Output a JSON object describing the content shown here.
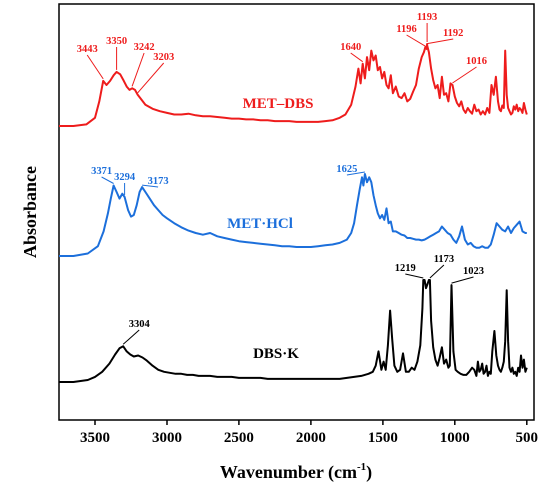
{
  "chart_data": {
    "type": "line",
    "xlabel": "Wavenumber (cm",
    "xlabel_sup": "-1",
    "xlabel_close": ")",
    "ylabel": "Absorbance",
    "xlim": [
      3750,
      450
    ],
    "x_reversed": true,
    "xticks": [
      3500,
      3000,
      2500,
      2000,
      1500,
      1000,
      500
    ],
    "xtick_labels": [
      "3500",
      "3000",
      "2500",
      "2000",
      "1500",
      "1000",
      "500"
    ],
    "grid": false,
    "legend": "none",
    "series": [
      {
        "name": "MET–DBS",
        "color": "#ee1c1c",
        "x": [
          3750,
          3650,
          3560,
          3500,
          3470,
          3443,
          3420,
          3395,
          3370,
          3350,
          3325,
          3300,
          3280,
          3260,
          3242,
          3222,
          3203,
          3150,
          3100,
          3050,
          3000,
          2950,
          2900,
          2850,
          2800,
          2750,
          2700,
          2650,
          2600,
          2550,
          2500,
          2450,
          2400,
          2350,
          2300,
          2250,
          2200,
          2150,
          2100,
          2050,
          2000,
          1950,
          1900,
          1850,
          1800,
          1760,
          1720,
          1690,
          1670,
          1655,
          1640,
          1625,
          1610,
          1595,
          1580,
          1565,
          1550,
          1535,
          1520,
          1505,
          1490,
          1475,
          1460,
          1445,
          1430,
          1410,
          1390,
          1370,
          1350,
          1330,
          1310,
          1290,
          1270,
          1250,
          1230,
          1215,
          1205,
          1196,
          1193,
          1192,
          1180,
          1165,
          1150,
          1135,
          1120,
          1105,
          1090,
          1075,
          1060,
          1045,
          1030,
          1016,
          1000,
          985,
          970,
          955,
          940,
          925,
          910,
          895,
          880,
          865,
          850,
          835,
          820,
          805,
          790,
          775,
          760,
          745,
          730,
          715,
          700,
          690,
          680,
          670,
          660,
          650,
          640,
          630,
          620,
          610,
          600,
          590,
          580,
          570,
          560,
          550,
          540,
          530,
          520,
          510,
          500
        ],
        "y": [
          0.0,
          0.0,
          0.02,
          0.1,
          0.3,
          0.55,
          0.5,
          0.55,
          0.62,
          0.66,
          0.63,
          0.55,
          0.48,
          0.44,
          0.46,
          0.44,
          0.38,
          0.26,
          0.21,
          0.18,
          0.16,
          0.14,
          0.14,
          0.15,
          0.13,
          0.12,
          0.12,
          0.11,
          0.1,
          0.09,
          0.09,
          0.08,
          0.08,
          0.07,
          0.07,
          0.06,
          0.06,
          0.06,
          0.05,
          0.05,
          0.05,
          0.05,
          0.06,
          0.07,
          0.1,
          0.14,
          0.26,
          0.48,
          0.7,
          0.52,
          0.76,
          0.58,
          0.84,
          0.68,
          0.92,
          0.8,
          0.86,
          0.68,
          0.72,
          0.58,
          0.66,
          0.5,
          0.46,
          0.62,
          0.4,
          0.48,
          0.36,
          0.34,
          0.4,
          0.3,
          0.33,
          0.42,
          0.5,
          0.7,
          0.84,
          0.9,
          0.96,
          0.94,
          1.0,
          0.98,
          0.9,
          0.7,
          0.56,
          0.46,
          0.5,
          0.34,
          0.6,
          0.38,
          0.4,
          0.3,
          0.52,
          0.5,
          0.36,
          0.28,
          0.24,
          0.3,
          0.2,
          0.16,
          0.22,
          0.18,
          0.15,
          0.26,
          0.18,
          0.2,
          0.14,
          0.18,
          0.14,
          0.22,
          0.16,
          0.5,
          0.38,
          0.6,
          0.3,
          0.2,
          0.18,
          0.25,
          0.22,
          0.92,
          0.38,
          0.22,
          0.18,
          0.14,
          0.16,
          0.24,
          0.2,
          0.26,
          0.18,
          0.22,
          0.2,
          0.16,
          0.28,
          0.2,
          0.14
        ]
      },
      {
        "name": "MET·HCl",
        "color": "#1c6fdb",
        "x": [
          3750,
          3650,
          3550,
          3480,
          3440,
          3410,
          3390,
          3371,
          3350,
          3330,
          3310,
          3294,
          3270,
          3250,
          3230,
          3210,
          3190,
          3173,
          3150,
          3120,
          3090,
          3060,
          3030,
          3000,
          2950,
          2900,
          2850,
          2800,
          2750,
          2700,
          2650,
          2600,
          2550,
          2500,
          2450,
          2400,
          2350,
          2300,
          2250,
          2200,
          2150,
          2100,
          2050,
          2000,
          1950,
          1900,
          1850,
          1800,
          1750,
          1720,
          1700,
          1680,
          1660,
          1645,
          1635,
          1625,
          1610,
          1595,
          1580,
          1565,
          1550,
          1535,
          1520,
          1505,
          1490,
          1475,
          1460,
          1445,
          1430,
          1410,
          1390,
          1370,
          1350,
          1330,
          1310,
          1290,
          1270,
          1250,
          1230,
          1210,
          1190,
          1170,
          1150,
          1130,
          1110,
          1090,
          1070,
          1050,
          1030,
          1010,
          990,
          970,
          950,
          930,
          910,
          890,
          870,
          850,
          830,
          810,
          790,
          770,
          750,
          730,
          710,
          690,
          670,
          650,
          630,
          610,
          590,
          570,
          550,
          530,
          510,
          500
        ],
        "y": [
          0.0,
          0.0,
          0.03,
          0.12,
          0.3,
          0.52,
          0.7,
          0.86,
          0.78,
          0.7,
          0.76,
          0.72,
          0.56,
          0.48,
          0.5,
          0.62,
          0.78,
          0.84,
          0.78,
          0.7,
          0.62,
          0.56,
          0.5,
          0.46,
          0.4,
          0.35,
          0.31,
          0.28,
          0.26,
          0.28,
          0.24,
          0.22,
          0.2,
          0.18,
          0.17,
          0.16,
          0.15,
          0.14,
          0.13,
          0.12,
          0.12,
          0.11,
          0.11,
          0.11,
          0.12,
          0.13,
          0.14,
          0.16,
          0.2,
          0.28,
          0.4,
          0.62,
          0.82,
          0.96,
          0.86,
          1.0,
          0.9,
          0.96,
          0.9,
          0.74,
          0.62,
          0.52,
          0.46,
          0.5,
          0.44,
          0.58,
          0.4,
          0.42,
          0.3,
          0.3,
          0.28,
          0.26,
          0.25,
          0.22,
          0.22,
          0.21,
          0.2,
          0.2,
          0.19,
          0.2,
          0.22,
          0.24,
          0.26,
          0.28,
          0.3,
          0.36,
          0.32,
          0.28,
          0.26,
          0.2,
          0.16,
          0.24,
          0.36,
          0.2,
          0.14,
          0.16,
          0.12,
          0.1,
          0.1,
          0.12,
          0.1,
          0.1,
          0.14,
          0.26,
          0.4,
          0.36,
          0.32,
          0.3,
          0.36,
          0.28,
          0.34,
          0.38,
          0.42,
          0.3,
          0.28,
          0.28
        ]
      },
      {
        "name": "DBS·K",
        "color": "#000000",
        "x": [
          3750,
          3650,
          3550,
          3500,
          3450,
          3400,
          3360,
          3330,
          3304,
          3280,
          3255,
          3230,
          3200,
          3170,
          3140,
          3100,
          3060,
          3020,
          2980,
          2940,
          2900,
          2860,
          2820,
          2780,
          2740,
          2700,
          2650,
          2600,
          2550,
          2500,
          2450,
          2400,
          2350,
          2300,
          2250,
          2200,
          2150,
          2100,
          2050,
          2000,
          1950,
          1900,
          1850,
          1800,
          1750,
          1700,
          1650,
          1600,
          1570,
          1550,
          1530,
          1510,
          1495,
          1480,
          1465,
          1450,
          1435,
          1420,
          1400,
          1380,
          1360,
          1340,
          1320,
          1300,
          1280,
          1260,
          1240,
          1225,
          1219,
          1210,
          1200,
          1190,
          1180,
          1173,
          1165,
          1150,
          1135,
          1120,
          1105,
          1090,
          1075,
          1060,
          1045,
          1035,
          1023,
          1010,
          995,
          980,
          960,
          940,
          920,
          900,
          880,
          865,
          850,
          840,
          830,
          820,
          810,
          800,
          790,
          780,
          770,
          760,
          750,
          740,
          725,
          712,
          700,
          690,
          680,
          670,
          660,
          650,
          640,
          630,
          620,
          610,
          600,
          590,
          580,
          570,
          560,
          550,
          540,
          530,
          520,
          510,
          500
        ],
        "y": [
          0.0,
          0.0,
          0.02,
          0.05,
          0.1,
          0.18,
          0.27,
          0.33,
          0.35,
          0.3,
          0.27,
          0.25,
          0.26,
          0.24,
          0.21,
          0.16,
          0.12,
          0.1,
          0.09,
          0.08,
          0.08,
          0.07,
          0.07,
          0.06,
          0.06,
          0.06,
          0.05,
          0.05,
          0.05,
          0.04,
          0.04,
          0.04,
          0.04,
          0.03,
          0.03,
          0.03,
          0.03,
          0.03,
          0.03,
          0.03,
          0.03,
          0.03,
          0.03,
          0.03,
          0.04,
          0.05,
          0.06,
          0.08,
          0.1,
          0.16,
          0.3,
          0.12,
          0.2,
          0.12,
          0.36,
          0.7,
          0.42,
          0.16,
          0.1,
          0.12,
          0.28,
          0.1,
          0.1,
          0.14,
          0.12,
          0.2,
          0.36,
          0.72,
          1.0,
          1.0,
          0.92,
          0.96,
          1.0,
          1.0,
          0.6,
          0.34,
          0.22,
          0.16,
          0.24,
          0.34,
          0.18,
          0.22,
          0.14,
          0.16,
          0.95,
          0.3,
          0.12,
          0.1,
          0.08,
          0.07,
          0.07,
          0.1,
          0.14,
          0.12,
          0.06,
          0.2,
          0.1,
          0.12,
          0.18,
          0.08,
          0.1,
          0.16,
          0.06,
          0.1,
          0.08,
          0.3,
          0.5,
          0.26,
          0.16,
          0.12,
          0.1,
          0.14,
          0.2,
          0.4,
          0.9,
          0.4,
          0.14,
          0.1,
          0.14,
          0.08,
          0.1,
          0.06,
          0.14,
          0.1,
          0.26,
          0.14,
          0.22,
          0.1,
          0.14
        ]
      }
    ],
    "series_labels": [
      "MET–DBS",
      "MET·HCl",
      "DBS·K"
    ],
    "annotations": [
      {
        "series": 0,
        "text": "3443",
        "x": 3443
      },
      {
        "series": 0,
        "text": "3350",
        "x": 3350
      },
      {
        "series": 0,
        "text": "3242",
        "x": 3242
      },
      {
        "series": 0,
        "text": "3203",
        "x": 3203
      },
      {
        "series": 0,
        "text": "1640",
        "x": 1640
      },
      {
        "series": 0,
        "text": "1196",
        "x": 1196
      },
      {
        "series": 0,
        "text": "1193",
        "x": 1193
      },
      {
        "series": 0,
        "text": "1192",
        "x": 1192
      },
      {
        "series": 0,
        "text": "1016",
        "x": 1016
      },
      {
        "series": 1,
        "text": "3371",
        "x": 3371
      },
      {
        "series": 1,
        "text": "3294",
        "x": 3294
      },
      {
        "series": 1,
        "text": "3173",
        "x": 3173
      },
      {
        "series": 1,
        "text": "1625",
        "x": 1625
      },
      {
        "series": 2,
        "text": "3304",
        "x": 3304
      },
      {
        "series": 2,
        "text": "1219",
        "x": 1219
      },
      {
        "series": 2,
        "text": "1173",
        "x": 1173
      },
      {
        "series": 2,
        "text": "1023",
        "x": 1023
      }
    ]
  }
}
